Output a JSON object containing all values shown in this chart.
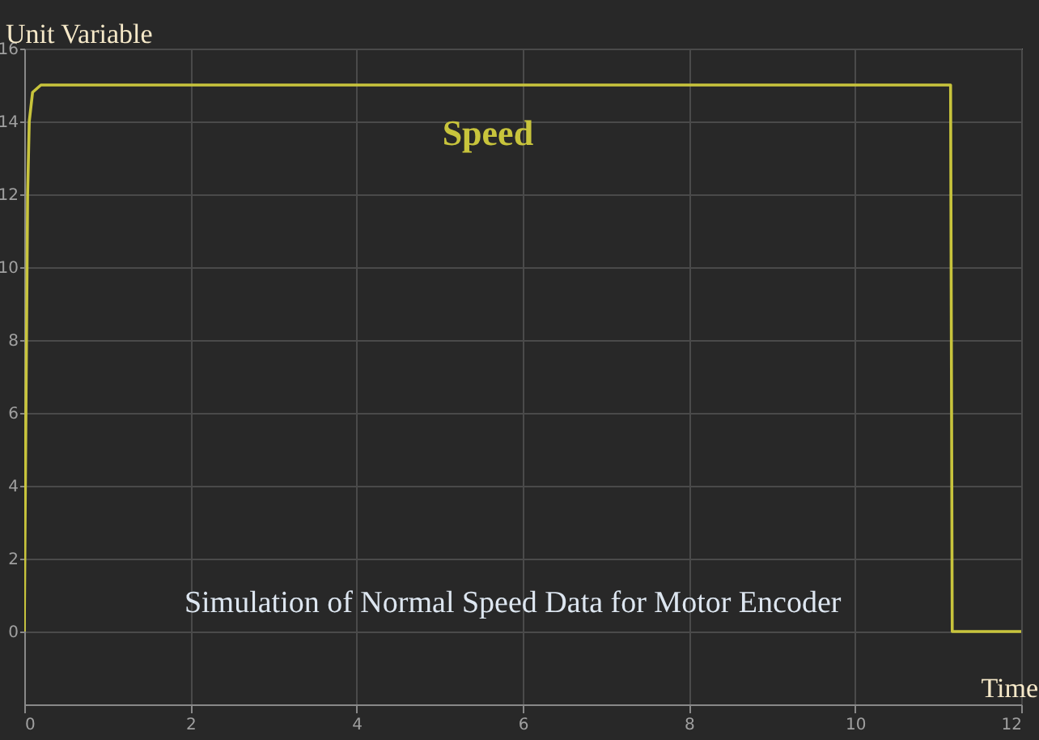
{
  "chart_data": {
    "type": "line",
    "xlabel": "Time",
    "ylabel": "Unit Variable",
    "x": [
      0,
      0.02,
      0.04,
      0.06,
      0.1,
      0.2,
      11.15,
      11.17,
      12
    ],
    "series": [
      {
        "name": "Speed",
        "color": "#c8c43c",
        "values": [
          0,
          6,
          12,
          14,
          14.8,
          15,
          15,
          0,
          0
        ]
      }
    ],
    "xlim": [
      0,
      12
    ],
    "xticks": [
      0,
      2,
      4,
      6,
      8,
      10,
      12
    ],
    "ylim": [
      -2,
      16
    ],
    "yticks": [
      0,
      2,
      4,
      6,
      8,
      10,
      12,
      14,
      16
    ],
    "grid": true,
    "legend": false,
    "annotations": [
      "Simulation of Normal Speed Data for Motor Encoder"
    ]
  }
}
